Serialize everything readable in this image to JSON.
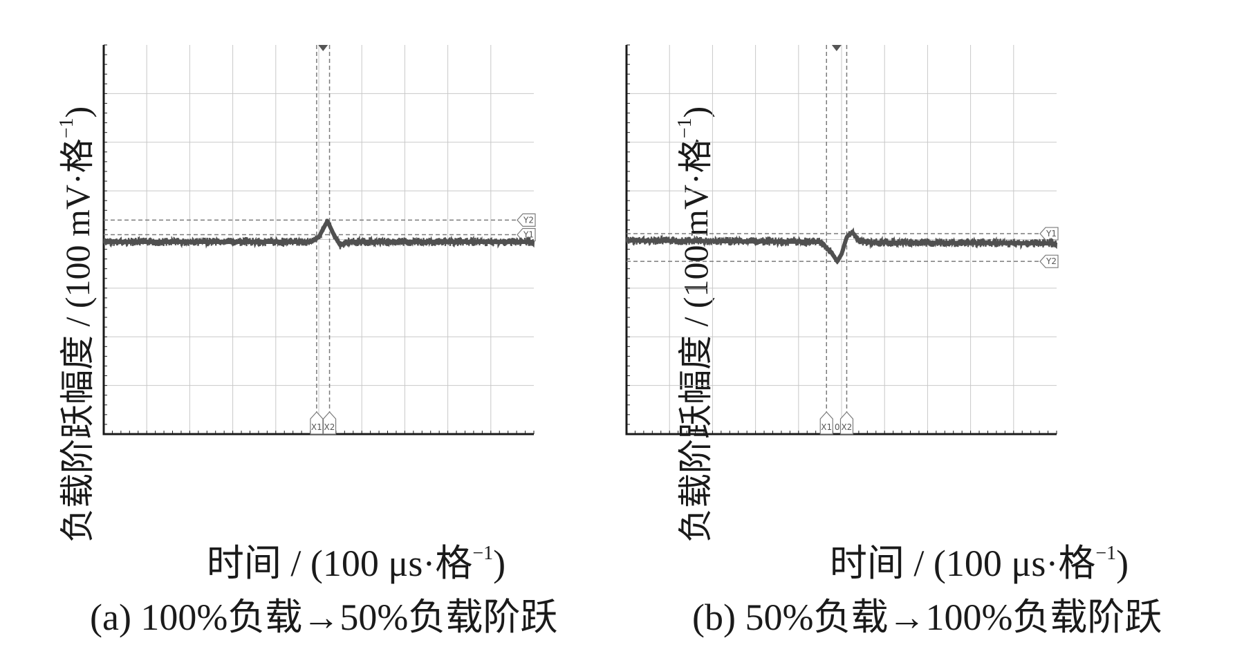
{
  "chart_data": [
    {
      "type": "line",
      "caption": "(a)  100%负载→50%负载阶跃",
      "xlabel": "时间 / (100 μs·格",
      "xlabel_sup": "−1",
      "xlabel_tail": ")",
      "ylabel": "负载阶跃幅度 / (100 mV·格",
      "ylabel_sup": "−1",
      "ylabel_tail": ")",
      "xlim": [
        0,
        10
      ],
      "ylim": [
        -4,
        4
      ],
      "grid": true,
      "markers": {
        "Y1": 0.1,
        "Y2": 0.4,
        "X1": 4.95,
        "X2": 5.25
      },
      "marker_labels": [
        "Y1",
        "Y2",
        "X1",
        "X2"
      ],
      "series": [
        {
          "x": [
            0,
            4.8,
            5.0,
            5.2,
            5.35,
            5.5,
            5.7,
            10
          ],
          "y": [
            -0.05,
            -0.05,
            0.05,
            0.38,
            0.1,
            -0.12,
            -0.05,
            -0.05
          ]
        }
      ]
    },
    {
      "type": "line",
      "caption": "(b)  50%负载→100%负载阶跃",
      "xlabel": "时间 / (100 μs·格",
      "xlabel_sup": "−1",
      "xlabel_tail": ")",
      "ylabel": "负载阶跃幅度 / (100 mV·格",
      "ylabel_sup": "−1",
      "ylabel_tail": ")",
      "xlim": [
        0,
        10
      ],
      "ylim": [
        -4,
        4
      ],
      "grid": true,
      "markers": {
        "Y1": 0.12,
        "Y2": -0.45,
        "X1": 4.65,
        "X2": 5.12
      },
      "marker_labels": [
        "Y1",
        "Y2",
        "X1",
        "X2"
      ],
      "marker_extra_label": "0",
      "series": [
        {
          "x": [
            0,
            4.5,
            4.75,
            4.9,
            5.0,
            5.12,
            5.25,
            5.4,
            5.6,
            10
          ],
          "y": [
            -0.02,
            -0.05,
            -0.25,
            -0.45,
            -0.3,
            0.05,
            0.15,
            -0.02,
            -0.06,
            -0.08
          ]
        }
      ]
    }
  ],
  "colors": {
    "frame": "#1a1a1a",
    "grid": "#c8c8c8",
    "trace": "#505050",
    "cursor": "#7a7a7a"
  }
}
